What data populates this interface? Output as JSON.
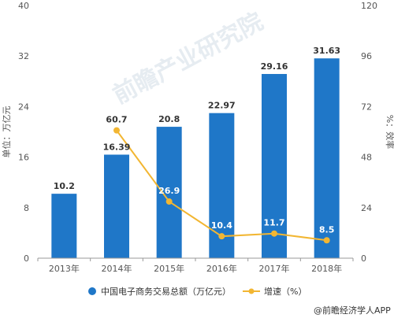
{
  "chart_data": {
    "type": "bar",
    "categories": [
      "2013年",
      "2014年",
      "2015年",
      "2016年",
      "2017年",
      "2018年"
    ],
    "series": [
      {
        "name": "中国电子商务交易总额（万亿元）",
        "kind": "bar",
        "axis": "left",
        "color": "#1f77c8",
        "values": [
          10.2,
          16.39,
          20.8,
          22.97,
          29.16,
          31.63
        ],
        "labels": [
          "10.2",
          "16.39",
          "20.8",
          "22.97",
          "29.16",
          "31.63"
        ]
      },
      {
        "name": "增速（%）",
        "kind": "line",
        "axis": "right",
        "color": "#f2b632",
        "values": [
          null,
          60.7,
          26.9,
          10.4,
          11.7,
          8.5
        ],
        "labels": [
          "",
          "60.7",
          "26.9",
          "10.4",
          "11.7",
          "8.5"
        ]
      }
    ],
    "ylabel_left": "单位：万亿元",
    "ylabel_right": "%：效率",
    "ylim_left": [
      0,
      40
    ],
    "ylim_right": [
      0,
      120
    ],
    "yticks_left": [
      "0",
      "8",
      "16",
      "24",
      "32",
      "40"
    ],
    "yticks_right": [
      "0",
      "24",
      "48",
      "72",
      "96",
      "120"
    ],
    "legend_position": "bottom",
    "grid": false
  },
  "watermark": "前瞻产业研究院",
  "source": "@前瞻经济学人APP"
}
